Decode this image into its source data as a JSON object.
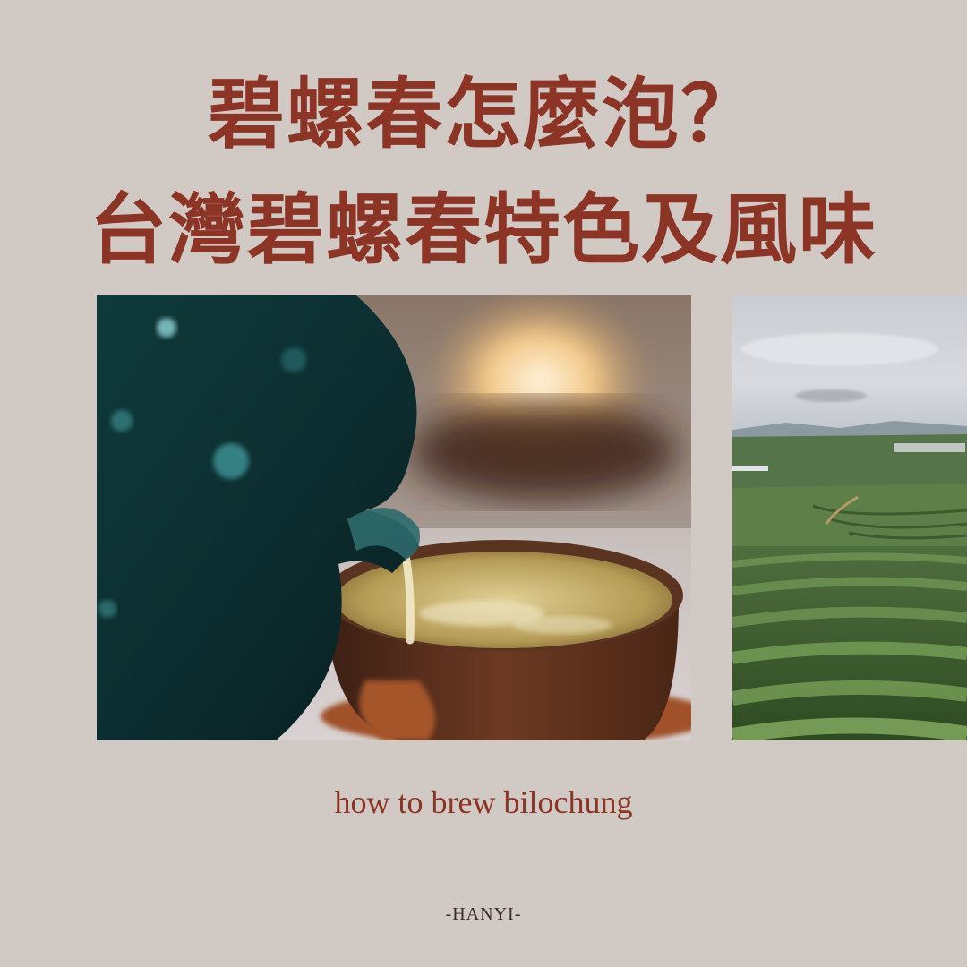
{
  "title": {
    "line1": "碧螺春怎麼泡？",
    "line2": "台灣碧螺春特色及風味"
  },
  "subtitle": "how to brew bilochung",
  "brand": "-HANYI-",
  "colors": {
    "background": "#d1c9c3",
    "accent": "#8c3426"
  }
}
